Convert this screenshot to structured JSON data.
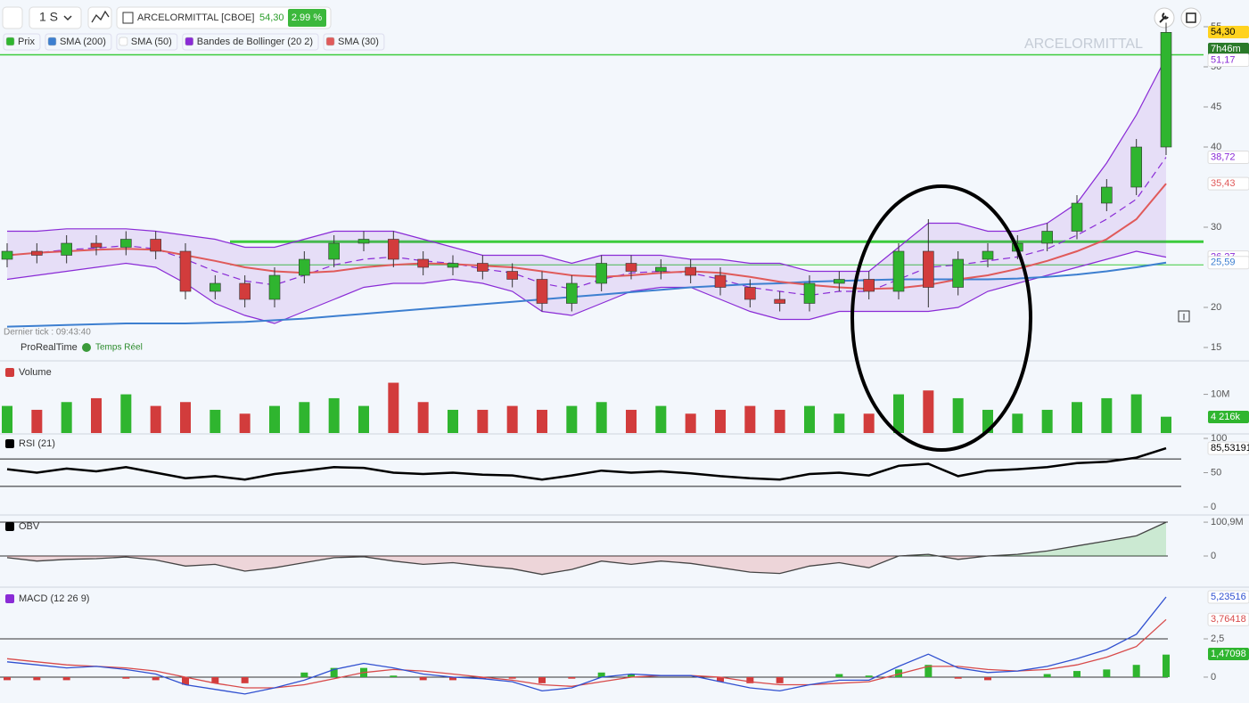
{
  "toolbar": {
    "interval": "1 S",
    "symbol": "ARCELORMITTAL [CBOE]",
    "change": "2.99 %",
    "timer": "7h46m"
  },
  "status": {
    "last_tick": "Dernier tick : 09:43:40",
    "provider": "ProRealTime",
    "feed": "Temps Réel"
  },
  "chart_data": [
    {
      "type": "candlestick",
      "title": "ARCELORMITTAL",
      "ylim": [
        14,
        56
      ],
      "yticks": [
        15,
        20,
        30,
        40,
        45,
        50,
        55
      ],
      "candles": {
        "name": "Prix",
        "up_color": "#2fb52f",
        "down_color": "#d23c3c",
        "open": [
          26,
          27,
          26.5,
          28,
          27.5,
          28.5,
          27,
          22,
          23,
          21,
          24,
          26,
          28,
          28.5,
          26,
          25,
          25.5,
          24.5,
          23.5,
          20.5,
          23,
          25.5,
          24.5,
          25,
          24,
          22.5,
          21,
          20.5,
          23,
          23.5,
          22,
          27,
          22.5,
          26,
          27,
          28,
          29.5,
          33,
          35,
          40
        ],
        "high": [
          28,
          28,
          29,
          29,
          29.5,
          29.5,
          28,
          24,
          24,
          25,
          27,
          29,
          29.5,
          29.5,
          27,
          26.5,
          26.5,
          25.5,
          24.5,
          24,
          26.5,
          26.5,
          26,
          26,
          25,
          23.5,
          22,
          24,
          24.5,
          24.5,
          28,
          31,
          27,
          28,
          29,
          30.5,
          34,
          36,
          41,
          55.5
        ],
        "low": [
          25,
          25.5,
          25.5,
          26.5,
          26.5,
          26,
          21,
          21,
          20,
          20,
          23,
          25,
          27,
          25,
          24,
          24,
          23.5,
          22.5,
          19.5,
          19.5,
          22,
          23.5,
          23.5,
          23,
          21.5,
          20,
          19.5,
          19.5,
          22,
          21,
          21,
          20,
          21.5,
          25,
          26,
          27,
          28.5,
          32,
          34,
          39
        ],
        "close": [
          27,
          26.5,
          28,
          27.5,
          28.5,
          27,
          22,
          23,
          21,
          24,
          26,
          28,
          28.5,
          26,
          25,
          25.5,
          24.5,
          23.5,
          20.5,
          23,
          25.5,
          24.5,
          25,
          24,
          22.5,
          21,
          20.5,
          23,
          23.5,
          22,
          27,
          22.5,
          26,
          27,
          28,
          29.5,
          33,
          35,
          40,
          54.3
        ],
        "last_label": "54,30"
      },
      "series": [
        {
          "name": "SMA (200)",
          "color": "#3d7fd0",
          "values": [
            17.6,
            17.7,
            17.8,
            17.9,
            18,
            18,
            18,
            18.1,
            18.2,
            18.4,
            18.6,
            18.9,
            19.2,
            19.5,
            19.8,
            20.1,
            20.4,
            20.7,
            21,
            21.3,
            21.6,
            21.9,
            22.2,
            22.5,
            22.7,
            22.9,
            23,
            23.2,
            23.3,
            23.4,
            23.5,
            23.5,
            23.5,
            23.5,
            23.6,
            23.8,
            24.1,
            24.5,
            25,
            25.59
          ],
          "last_label": "25,59"
        },
        {
          "name": "SMA (30)",
          "color": "#e05a5a",
          "values": [
            26.5,
            26.8,
            27,
            27.2,
            27.3,
            27.2,
            26.5,
            25.8,
            25,
            24.5,
            24.3,
            24.5,
            25,
            25.3,
            25.5,
            25.4,
            25.2,
            25,
            24.5,
            24,
            23.8,
            24,
            24.3,
            24.5,
            24.3,
            23.8,
            23.2,
            22.8,
            22.5,
            22.3,
            22.4,
            22.8,
            23.5,
            24,
            24.8,
            25.8,
            27,
            28.5,
            31,
            35.43
          ],
          "last_label": "35,43"
        }
      ],
      "legend_only": [
        {
          "name": "SMA (50)",
          "color": "#ffffff"
        }
      ],
      "bands": {
        "name": "Bandes de Bollinger (20 2)",
        "color": "#8a2bd6",
        "upper": [
          29.5,
          29.5,
          29.8,
          29.8,
          29.8,
          29.5,
          29,
          28.5,
          27.5,
          27.5,
          28.5,
          29.5,
          29.5,
          29.5,
          28.5,
          27.5,
          26.5,
          26.5,
          26.5,
          25.5,
          26.5,
          26.5,
          26.5,
          26,
          26,
          25.5,
          25.5,
          24.5,
          24.5,
          24.5,
          27.5,
          30.5,
          30.5,
          29.5,
          29.5,
          30.5,
          33,
          38,
          44,
          51.17
        ],
        "middle": [
          26.5,
          26.8,
          27.2,
          27.4,
          27.7,
          27.3,
          26,
          24.5,
          23.3,
          22.8,
          24,
          25.3,
          26,
          26.3,
          25.8,
          25.5,
          24.8,
          24.3,
          23,
          22.3,
          23.5,
          24.3,
          24.5,
          24.3,
          23.5,
          22.5,
          22,
          21.5,
          22,
          22,
          23.5,
          25,
          25.3,
          25.8,
          26.3,
          27.3,
          29,
          31,
          33.5,
          38.72
        ],
        "lower": [
          23.5,
          24,
          24.5,
          25,
          25.5,
          25,
          23,
          20.5,
          19,
          18,
          19.5,
          21,
          22.5,
          23,
          23,
          23.5,
          23,
          22,
          19.5,
          19,
          20.5,
          22,
          22.5,
          22.5,
          21,
          19.5,
          18.5,
          18.5,
          19.5,
          19.5,
          19.5,
          19.5,
          20,
          22,
          23,
          24,
          25,
          26,
          27,
          26.27
        ],
        "upper_label": "51,17",
        "middle_label": "38,72",
        "lower_label": "26,27"
      },
      "hlines": [
        51.5,
        28.2,
        25.3
      ],
      "hline_color": "#3dcc3d"
    },
    {
      "type": "bar",
      "title": "Volume",
      "ylim": [
        0,
        17500000
      ],
      "yticks": [
        {
          "value": 10000000,
          "label": "10M"
        }
      ],
      "values": [
        7000000,
        6000000,
        8000000,
        9000000,
        10000000,
        7000000,
        8000000,
        6000000,
        5000000,
        7000000,
        8000000,
        9000000,
        7000000,
        13000000,
        8000000,
        6000000,
        6000000,
        7000000,
        6000000,
        7000000,
        8000000,
        6000000,
        7000000,
        5000000,
        6000000,
        7000000,
        6000000,
        7000000,
        5000000,
        5000000,
        10000000,
        11000000,
        9000000,
        6000000,
        5000000,
        6000000,
        8000000,
        9000000,
        10000000,
        4216000
      ],
      "last_label": "4 216k"
    },
    {
      "type": "line",
      "title": "RSI (21)",
      "color": "#000000",
      "ylim": [
        0,
        100
      ],
      "yticks": [
        0,
        50,
        100
      ],
      "levels": [
        30,
        70
      ],
      "values": [
        55,
        50,
        56,
        52,
        58,
        50,
        42,
        45,
        40,
        48,
        53,
        58,
        57,
        50,
        48,
        50,
        47,
        46,
        40,
        46,
        53,
        50,
        52,
        49,
        45,
        42,
        40,
        48,
        50,
        46,
        60,
        63,
        45,
        53,
        55,
        58,
        64,
        66,
        72,
        85.53191
      ],
      "last_label": "85,53191"
    },
    {
      "type": "area",
      "title": "OBV",
      "color": "#444444",
      "ylim": [
        -85000000,
        117000000
      ],
      "yticks": [
        0,
        {
          "value": 100900000,
          "label": "100,9M"
        }
      ],
      "values": [
        -5000000,
        -15000000,
        -10000000,
        -8000000,
        -3000000,
        -12000000,
        -30000000,
        -25000000,
        -45000000,
        -35000000,
        -20000000,
        -5000000,
        -2000000,
        -15000000,
        -25000000,
        -20000000,
        -30000000,
        -38000000,
        -55000000,
        -40000000,
        -15000000,
        -25000000,
        -15000000,
        -22000000,
        -35000000,
        -48000000,
        -52000000,
        -30000000,
        -20000000,
        -35000000,
        0,
        5000000,
        -10000000,
        0,
        5000000,
        15000000,
        30000000,
        45000000,
        60000000,
        100900000
      ]
    },
    {
      "type": "macd",
      "title": "MACD (12 26 9)",
      "ylim": [
        -1.69,
        5.7
      ],
      "yticks": [
        0,
        {
          "value": 2.5,
          "label": "2,5"
        }
      ],
      "macd": {
        "color": "#3050d0",
        "values": [
          1,
          0.8,
          0.6,
          0.7,
          0.5,
          0.2,
          -0.5,
          -0.8,
          -1.1,
          -0.7,
          -0.2,
          0.5,
          0.9,
          0.6,
          0.2,
          0,
          -0.1,
          -0.3,
          -0.9,
          -0.7,
          0,
          0.2,
          0.1,
          0.1,
          -0.3,
          -0.7,
          -0.9,
          -0.5,
          -0.2,
          -0.2,
          0.7,
          1.5,
          0.6,
          0.3,
          0.4,
          0.7,
          1.2,
          1.8,
          2.8,
          5.23516
        ],
        "last_label": "5,23516"
      },
      "signal": {
        "color": "#d84a4a",
        "values": [
          1.2,
          1,
          0.8,
          0.7,
          0.6,
          0.4,
          0,
          -0.4,
          -0.7,
          -0.7,
          -0.5,
          -0.1,
          0.3,
          0.5,
          0.4,
          0.2,
          0,
          -0.2,
          -0.5,
          -0.6,
          -0.3,
          0,
          0.1,
          0.1,
          0,
          -0.3,
          -0.5,
          -0.5,
          -0.4,
          -0.3,
          0.2,
          0.7,
          0.7,
          0.5,
          0.4,
          0.5,
          0.8,
          1.3,
          2,
          3.76418
        ],
        "last_label": "3,76418"
      },
      "histogram": {
        "up_color": "#2fb52f",
        "down_color": "#d23c3c",
        "values": [
          -0.2,
          -0.2,
          -0.2,
          0,
          -0.1,
          -0.2,
          -0.5,
          -0.4,
          -0.4,
          0,
          0.3,
          0.6,
          0.6,
          0.1,
          -0.2,
          -0.2,
          -0.1,
          -0.1,
          -0.4,
          -0.1,
          0.3,
          0.2,
          0,
          0,
          -0.3,
          -0.4,
          -0.4,
          0,
          0.2,
          0.1,
          0.5,
          0.8,
          -0.1,
          -0.2,
          0,
          0.2,
          0.4,
          0.5,
          0.8,
          1.47098
        ],
        "last_label": "1,47098"
      }
    }
  ]
}
